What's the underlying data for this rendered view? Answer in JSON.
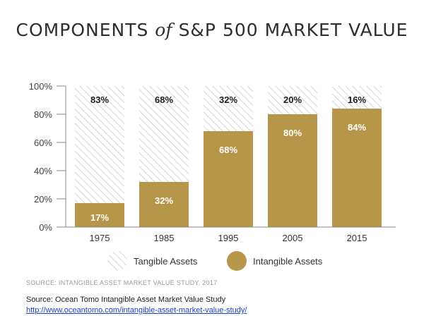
{
  "title": {
    "part1": "COMPONENTS",
    "part2": "of",
    "part3": "S&P 500 MARKET VALUE"
  },
  "chart_data": {
    "type": "bar",
    "stacked": true,
    "title": "COMPONENTS of S&P 500 MARKET VALUE",
    "categories": [
      "1975",
      "1985",
      "1995",
      "2005",
      "2015"
    ],
    "series": [
      {
        "name": "Intangible Assets",
        "values": [
          17,
          32,
          68,
          80,
          84
        ],
        "labels": [
          "17%",
          "32%",
          "68%",
          "80%",
          "84%"
        ],
        "color": "#b7964a"
      },
      {
        "name": "Tangible Assets",
        "values": [
          83,
          68,
          32,
          20,
          16
        ],
        "labels": [
          "83%",
          "68%",
          "32%",
          "20%",
          "16%"
        ],
        "pattern": "diagonal-hatch"
      }
    ],
    "yticks": [
      "0%",
      "20%",
      "40%",
      "60%",
      "80%",
      "100%"
    ],
    "ylim": [
      0,
      100
    ],
    "xlabel": "",
    "ylabel": "",
    "grid": false,
    "legend": [
      "Tangible Assets",
      "Intangible Assets"
    ]
  },
  "colors": {
    "intangible": "#b7964a",
    "hatch": "#c9c9c9",
    "axis": "#8a8a8a"
  },
  "source_caption": "SOURCE: INTANGIBLE ASSET MARKET VALUE STUDY, 2017",
  "source_line": "Source: Ocean Tomo Intangible Asset Market Value Study",
  "source_url": "http://www.oceantomo.com/intangible-asset-market-value-study/"
}
